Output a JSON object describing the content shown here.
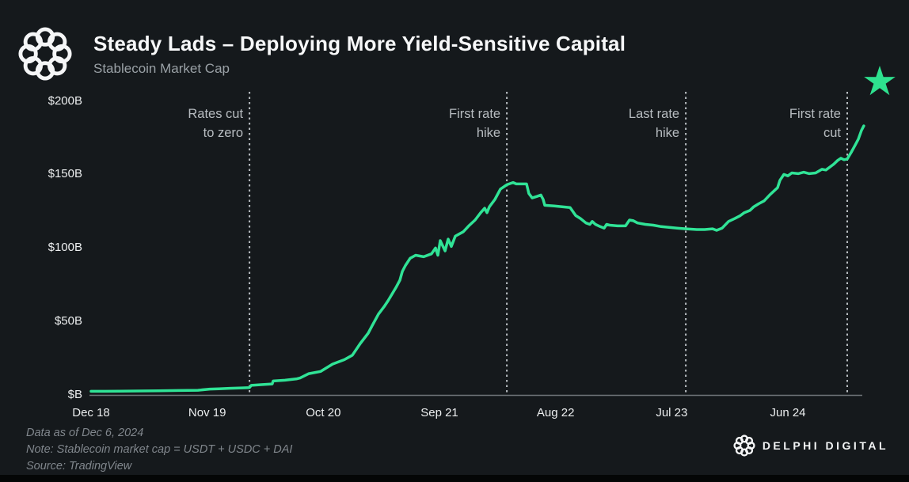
{
  "header": {
    "title": "Steady Lads – Deploying More Yield-Sensitive Capital",
    "subtitle": "Stablecoin Market Cap"
  },
  "icons": {
    "logo": "delphi-knot-logo",
    "star": "star-icon",
    "star_color": "#2ee28f"
  },
  "chart_data": {
    "type": "line",
    "title": "Stablecoin Market Cap",
    "unit": "$B",
    "grid": false,
    "legend": "none",
    "line_color": "#30e396",
    "ylim": [
      0,
      210
    ],
    "y_ticks": [
      {
        "v": 0,
        "label": "$B"
      },
      {
        "v": 50,
        "label": "$50B"
      },
      {
        "v": 100,
        "label": "$100B"
      },
      {
        "v": 150,
        "label": "$150B"
      },
      {
        "v": 200,
        "label": "$200B"
      }
    ],
    "x_ticks": [
      {
        "t": 0,
        "label": "Dec 18"
      },
      {
        "t": 1,
        "label": "Nov 19"
      },
      {
        "t": 2,
        "label": "Oct 20"
      },
      {
        "t": 3,
        "label": "Sep 21"
      },
      {
        "t": 4,
        "label": "Aug 22"
      },
      {
        "t": 5,
        "label": "Jul 23"
      },
      {
        "t": 6,
        "label": "Jun 24"
      }
    ],
    "vlines": [
      {
        "at": 1.364,
        "label": "Rates cut\nto zero"
      },
      {
        "at": 3.58,
        "label": "First rate\nhike"
      },
      {
        "at": 5.121,
        "label": "Last rate\nhike"
      },
      {
        "at": 6.511,
        "label": "First rate\ncut"
      }
    ],
    "series": [
      {
        "name": "Stablecoin Market Cap (USDT + USDC + DAI), $B",
        "points": [
          [
            0.0,
            2.5
          ],
          [
            0.12,
            2.5
          ],
          [
            0.24,
            2.6
          ],
          [
            0.4,
            2.7
          ],
          [
            0.58,
            2.8
          ],
          [
            0.75,
            3.0
          ],
          [
            0.92,
            3.2
          ],
          [
            1.023,
            4.0
          ],
          [
            1.1,
            4.2
          ],
          [
            1.193,
            4.5
          ],
          [
            1.3,
            4.8
          ],
          [
            1.364,
            5.0
          ],
          [
            1.38,
            6.5
          ],
          [
            1.466,
            7.0
          ],
          [
            1.56,
            7.5
          ],
          [
            1.568,
            9.5
          ],
          [
            1.67,
            10.0
          ],
          [
            1.773,
            11.0
          ],
          [
            1.8,
            11.5
          ],
          [
            1.875,
            14.5
          ],
          [
            1.977,
            16.0
          ],
          [
            2.08,
            21
          ],
          [
            2.182,
            24
          ],
          [
            2.25,
            27
          ],
          [
            2.318,
            35
          ],
          [
            2.386,
            42
          ],
          [
            2.42,
            47
          ],
          [
            2.475,
            55
          ],
          [
            2.523,
            60
          ],
          [
            2.557,
            64
          ],
          [
            2.625,
            73
          ],
          [
            2.659,
            78
          ],
          [
            2.68,
            84
          ],
          [
            2.707,
            88
          ],
          [
            2.748,
            93
          ],
          [
            2.795,
            95
          ],
          [
            2.864,
            94
          ],
          [
            2.932,
            96
          ],
          [
            2.966,
            100
          ],
          [
            2.986,
            95
          ],
          [
            3.007,
            105
          ],
          [
            3.048,
            98
          ],
          [
            3.075,
            106
          ],
          [
            3.102,
            101
          ],
          [
            3.136,
            108
          ],
          [
            3.205,
            111
          ],
          [
            3.252,
            115
          ],
          [
            3.307,
            119
          ],
          [
            3.355,
            124
          ],
          [
            3.389,
            127
          ],
          [
            3.409,
            124
          ],
          [
            3.43,
            128
          ],
          [
            3.477,
            133
          ],
          [
            3.525,
            140
          ],
          [
            3.58,
            143
          ],
          [
            3.634,
            144.5
          ],
          [
            3.661,
            143.5
          ],
          [
            3.75,
            143.5
          ],
          [
            3.77,
            137
          ],
          [
            3.798,
            134
          ],
          [
            3.839,
            135
          ],
          [
            3.873,
            136
          ],
          [
            3.893,
            133
          ],
          [
            3.907,
            129
          ],
          [
            3.989,
            128.5
          ],
          [
            4.057,
            128
          ],
          [
            4.125,
            127.5
          ],
          [
            4.173,
            122
          ],
          [
            4.214,
            120
          ],
          [
            4.261,
            117
          ],
          [
            4.295,
            116
          ],
          [
            4.316,
            118
          ],
          [
            4.343,
            116
          ],
          [
            4.384,
            114.5
          ],
          [
            4.418,
            113.5
          ],
          [
            4.439,
            116
          ],
          [
            4.466,
            115.5
          ],
          [
            4.534,
            115
          ],
          [
            4.602,
            115
          ],
          [
            4.636,
            119
          ],
          [
            4.67,
            118.5
          ],
          [
            4.705,
            117
          ],
          [
            4.773,
            116
          ],
          [
            4.841,
            115.5
          ],
          [
            4.909,
            114.5
          ],
          [
            4.977,
            114
          ],
          [
            5.045,
            113.5
          ],
          [
            5.121,
            113
          ],
          [
            5.216,
            112.5
          ],
          [
            5.284,
            112.5
          ],
          [
            5.352,
            113
          ],
          [
            5.386,
            112
          ],
          [
            5.434,
            113.5
          ],
          [
            5.489,
            118
          ],
          [
            5.543,
            120
          ],
          [
            5.591,
            122
          ],
          [
            5.625,
            124
          ],
          [
            5.673,
            125.5
          ],
          [
            5.707,
            128
          ],
          [
            5.748,
            130
          ],
          [
            5.795,
            132
          ],
          [
            5.843,
            136
          ],
          [
            5.884,
            139
          ],
          [
            5.911,
            141
          ],
          [
            5.932,
            146
          ],
          [
            5.966,
            150
          ],
          [
            6.0,
            149
          ],
          [
            6.034,
            151
          ],
          [
            6.089,
            150.5
          ],
          [
            6.136,
            151.5
          ],
          [
            6.184,
            150.5
          ],
          [
            6.239,
            151
          ],
          [
            6.293,
            153.5
          ],
          [
            6.327,
            153
          ],
          [
            6.361,
            155
          ],
          [
            6.395,
            157
          ],
          [
            6.429,
            159.5
          ],
          [
            6.457,
            161
          ],
          [
            6.484,
            160
          ],
          [
            6.511,
            160.5
          ],
          [
            6.545,
            165
          ],
          [
            6.58,
            170
          ],
          [
            6.607,
            174
          ],
          [
            6.634,
            180
          ],
          [
            6.654,
            183
          ]
        ]
      }
    ]
  },
  "footer": {
    "notes": [
      "Data as of Dec 6, 2024",
      "Note: Stablecoin market cap = USDT + USDC + DAI",
      "Source: TradingView"
    ]
  },
  "brand": {
    "wordmark": "DELPHI DIGITAL"
  }
}
